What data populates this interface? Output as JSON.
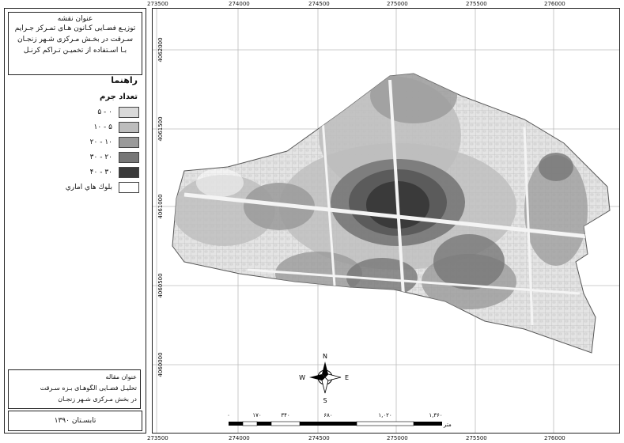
{
  "title_box": {
    "heading": "عنوان نقشه",
    "lines": [
      "توزیـع فضـایی کـانون هـای تمـرکز جـرایم",
      "سـرقت در بخـش مـرکزی شـهر زنجـان",
      "بـا اسـتفاده از تخمیـن تـراکم کرنـل"
    ]
  },
  "legend": {
    "title": "راهنما",
    "subtitle": "تعداد جرم",
    "items": [
      {
        "label": "۰ - ۵",
        "color": "#d9d9d9"
      },
      {
        "label": "۵ - ۱۰",
        "color": "#bdbdbd"
      },
      {
        "label": "۱۰ - ۲۰",
        "color": "#9a9a9a"
      },
      {
        "label": "۲۰ - ۳۰",
        "color": "#777777"
      },
      {
        "label": "۳۰ - ۴۰",
        "color": "#3a3a3a"
      },
      {
        "label": "بلوك هاي اماري",
        "color": "#ffffff"
      }
    ]
  },
  "article": {
    "heading": "عنوان مقاله",
    "line1": "تحلیـل فضـایی الگوهـای بـزه سـرقت",
    "line2": "در بخش مـرکزی شـهر زنجـان"
  },
  "date": "تابسـتان ۱۳۹۰",
  "top_x_labels": [
    "273500",
    "274000",
    "274500",
    "275000",
    "275500",
    "276000"
  ],
  "bottom_x_labels": [
    "273500",
    "274000",
    "274500",
    "275000",
    "275500",
    "276000"
  ],
  "y_labels": [
    "4062000",
    "4061500",
    "4061000",
    "4060500",
    "4060000"
  ],
  "north_arrow": {
    "n": "N",
    "s": "S",
    "e": "E",
    "w": "W"
  },
  "scale_bar": {
    "ticks": [
      "۰",
      "۱۷۰",
      "۳۴۰",
      "۶۸۰",
      "۱,۰۲۰",
      "۱,۳۶۰"
    ],
    "unit": "متر"
  }
}
